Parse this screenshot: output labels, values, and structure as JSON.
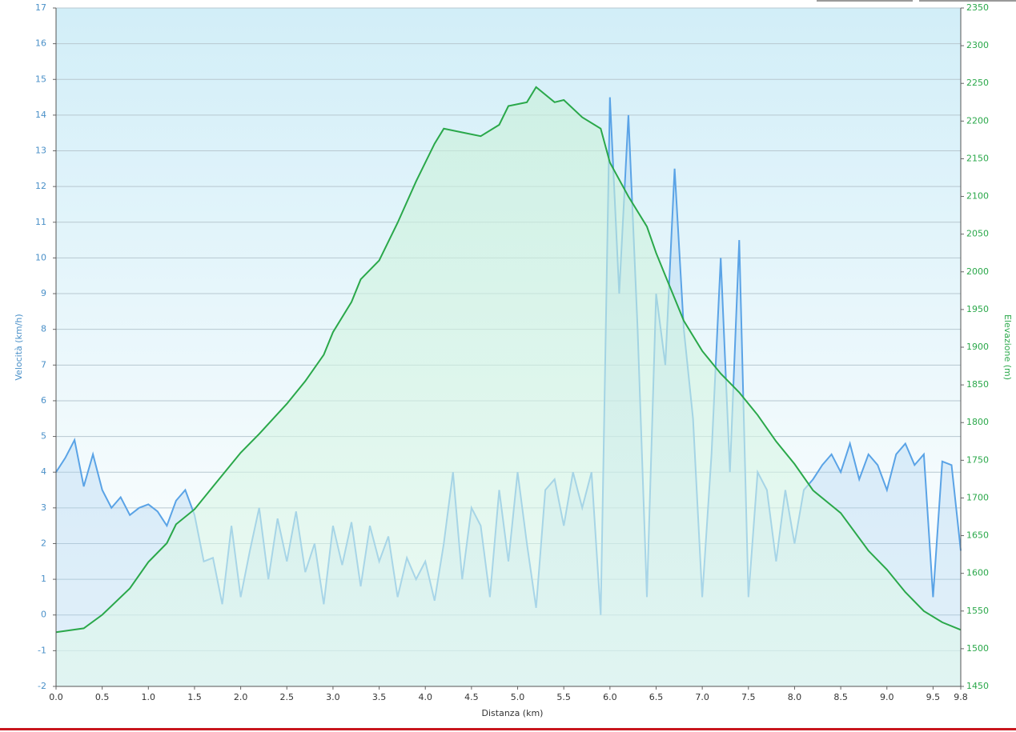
{
  "chart_data": {
    "type": "line",
    "xlabel": "Distanza  (km)",
    "ylabel": "Velocità (km/h)",
    "y2label": "Elevazione (m)",
    "xlim": [
      0,
      9.8
    ],
    "xticks": [
      {
        "value": 0,
        "label": "0.0"
      },
      0.5,
      {
        "value": 1,
        "label": "1.0"
      },
      1.5,
      {
        "value": 2,
        "label": "2.0"
      },
      2.5,
      {
        "value": 3,
        "label": "3.0"
      },
      3.5,
      {
        "value": 4,
        "label": "4.0"
      },
      4.5,
      {
        "value": 5,
        "label": "5.0"
      },
      5.5,
      {
        "value": 6,
        "label": "6.0"
      },
      6.5,
      {
        "value": 7,
        "label": "7.0"
      },
      7.5,
      {
        "value": 8,
        "label": "8.0"
      },
      8.5,
      {
        "value": 9,
        "label": "9.0"
      },
      9.5,
      9.8
    ],
    "ylim": [
      -2,
      17
    ],
    "yticks": [
      -2,
      -1,
      0,
      1,
      2,
      3,
      4,
      5,
      6,
      7,
      8,
      9,
      10,
      11,
      12,
      13,
      14,
      15,
      16,
      17
    ],
    "y2lim": [
      1450,
      2350
    ],
    "y2ticks": [
      1450,
      1500,
      1550,
      1600,
      1650,
      1700,
      1750,
      1800,
      1850,
      1900,
      1950,
      2000,
      2050,
      2100,
      2150,
      2200,
      2250,
      2300,
      2350
    ],
    "grid": true,
    "series": [
      {
        "name": "Velocità",
        "color": "#5aa3e6",
        "x": [
          0.0,
          0.1,
          0.2,
          0.3,
          0.4,
          0.5,
          0.6,
          0.7,
          0.8,
          0.9,
          1.0,
          1.1,
          1.2,
          1.3,
          1.4,
          1.5,
          1.6,
          1.7,
          1.8,
          1.9,
          2.0,
          2.1,
          2.2,
          2.3,
          2.4,
          2.5,
          2.6,
          2.7,
          2.8,
          2.9,
          3.0,
          3.1,
          3.2,
          3.3,
          3.4,
          3.5,
          3.6,
          3.7,
          3.8,
          3.9,
          4.0,
          4.1,
          4.2,
          4.3,
          4.4,
          4.5,
          4.6,
          4.7,
          4.8,
          4.9,
          5.0,
          5.1,
          5.2,
          5.3,
          5.4,
          5.5,
          5.6,
          5.7,
          5.8,
          5.9,
          6.0,
          6.1,
          6.2,
          6.3,
          6.4,
          6.5,
          6.6,
          6.7,
          6.8,
          6.9,
          7.0,
          7.1,
          7.2,
          7.3,
          7.4,
          7.5,
          7.6,
          7.7,
          7.8,
          7.9,
          8.0,
          8.1,
          8.2,
          8.3,
          8.4,
          8.5,
          8.6,
          8.7,
          8.8,
          8.9,
          9.0,
          9.1,
          9.2,
          9.3,
          9.4,
          9.5,
          9.6,
          9.7,
          9.8
        ],
        "values": [
          4.0,
          4.4,
          4.9,
          3.6,
          4.5,
          3.5,
          3.0,
          3.3,
          2.8,
          3.0,
          3.1,
          2.9,
          2.5,
          3.2,
          3.5,
          2.8,
          1.5,
          1.6,
          0.3,
          2.5,
          0.5,
          1.8,
          3.0,
          1.0,
          2.7,
          1.5,
          2.9,
          1.2,
          2.0,
          0.3,
          2.5,
          1.4,
          2.6,
          0.8,
          2.5,
          1.5,
          2.2,
          0.5,
          1.6,
          1.0,
          1.5,
          0.4,
          2.0,
          4.0,
          1.0,
          3.0,
          2.5,
          0.5,
          3.5,
          1.5,
          4.0,
          2.0,
          0.2,
          3.5,
          3.8,
          2.5,
          4.0,
          3.0,
          4.0,
          0.0,
          14.5,
          9.0,
          14.0,
          8.0,
          0.5,
          9.0,
          7.0,
          12.5,
          8.0,
          5.5,
          0.5,
          4.5,
          10.0,
          4.0,
          10.5,
          0.5,
          4.0,
          3.5,
          1.5,
          3.5,
          2.0,
          3.5,
          3.8,
          4.2,
          4.5,
          4.0,
          4.8,
          3.8,
          4.5,
          4.2,
          3.5,
          4.5,
          4.8,
          4.2,
          4.5,
          0.5,
          4.3,
          4.2,
          1.8
        ]
      },
      {
        "name": "Elevazione",
        "color": "#2aa84a",
        "axis": "y2",
        "x": [
          0,
          0.3,
          0.5,
          0.8,
          1.0,
          1.2,
          1.3,
          1.5,
          1.7,
          2.0,
          2.2,
          2.5,
          2.7,
          2.9,
          3.0,
          3.2,
          3.3,
          3.5,
          3.7,
          3.9,
          4.1,
          4.2,
          4.4,
          4.6,
          4.8,
          4.9,
          5.1,
          5.2,
          5.4,
          5.5,
          5.7,
          5.9,
          6.0,
          6.2,
          6.4,
          6.5,
          6.6,
          6.8,
          7.0,
          7.2,
          7.4,
          7.6,
          7.8,
          8.0,
          8.2,
          8.5,
          8.8,
          9.0,
          9.2,
          9.4,
          9.6,
          9.8
        ],
        "values": [
          1522,
          1527,
          1545,
          1580,
          1615,
          1640,
          1665,
          1685,
          1715,
          1760,
          1785,
          1825,
          1855,
          1890,
          1920,
          1960,
          1990,
          2015,
          2065,
          2120,
          2170,
          2190,
          2185,
          2180,
          2195,
          2220,
          2225,
          2245,
          2225,
          2228,
          2205,
          2190,
          2145,
          2100,
          2060,
          2025,
          1995,
          1935,
          1895,
          1865,
          1840,
          1810,
          1775,
          1745,
          1710,
          1680,
          1630,
          1605,
          1575,
          1550,
          1535,
          1525
        ]
      }
    ]
  }
}
